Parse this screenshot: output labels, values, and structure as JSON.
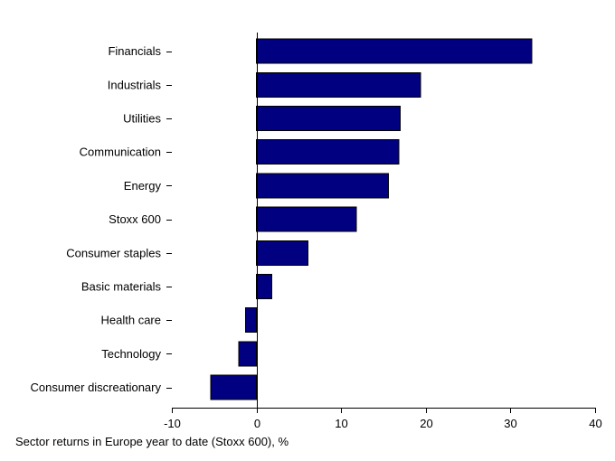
{
  "chart_data": {
    "type": "bar",
    "orientation": "horizontal",
    "categories": [
      "Financials",
      "Industrials",
      "Utilities",
      "Communication",
      "Energy",
      "Stoxx 600",
      "Consumer staples",
      "Basic materials",
      "Health care",
      "Technology",
      "Consumer discreationary"
    ],
    "values": [
      32.5,
      19.4,
      17.0,
      16.8,
      15.6,
      11.8,
      6.1,
      1.8,
      -1.3,
      -2.1,
      -5.4
    ],
    "xlim": [
      -10,
      40
    ],
    "xticks": [
      -10,
      0,
      10,
      20,
      30,
      40
    ],
    "xlabel": "Sector returns in Europe year to date (Stoxx 600), %",
    "title": "",
    "ylabel": "",
    "grid": false,
    "legend": "none",
    "bar_color": "#000080"
  }
}
